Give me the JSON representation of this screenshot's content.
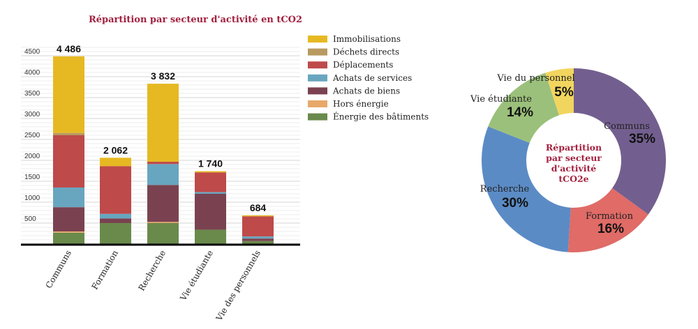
{
  "chart_data": [
    {
      "type": "bar",
      "stacked": true,
      "title": "Répartition par secteur d'activité en tCO2",
      "categories": [
        "Communs",
        "Formation",
        "Recherche",
        "Vie étudiante",
        "Vie des personnels"
      ],
      "totals": [
        "4 486",
        "2 062",
        "3 832",
        "1 740",
        "684"
      ],
      "yticks": [
        500,
        1000,
        1500,
        2000,
        2500,
        3000,
        3500,
        4000,
        4500
      ],
      "ylim": [
        0,
        4700
      ],
      "legend_position": "right",
      "series": [
        {
          "name": "Énergie des bâtiments",
          "color": "#6A8A4C",
          "values": [
            270,
            500,
            500,
            340,
            70
          ]
        },
        {
          "name": "Hors énergie",
          "color": "#E8A86A",
          "values": [
            30,
            0,
            28,
            0,
            0
          ]
        },
        {
          "name": "Achats de biens",
          "color": "#7A4250",
          "values": [
            580,
            110,
            883,
            860,
            60
          ]
        },
        {
          "name": "Achats de services",
          "color": "#68A6C0",
          "values": [
            470,
            110,
            500,
            40,
            50
          ]
        },
        {
          "name": "Déplacements",
          "color": "#BE4A4A",
          "values": [
            1250,
            1140,
            55,
            470,
            480
          ]
        },
        {
          "name": "Déchets directs",
          "color": "#B89A60",
          "values": [
            55,
            0,
            0,
            0,
            0
          ]
        },
        {
          "name": "Immobilisations",
          "color": "#E6B923",
          "values": [
            1831,
            202,
            1866,
            30,
            24
          ]
        }
      ]
    },
    {
      "type": "pie",
      "donut": true,
      "center_title": [
        "Répartition",
        "par secteur",
        "d'activité",
        "tCO2e"
      ],
      "slices": [
        {
          "label": "Communs",
          "value": 35,
          "pct": "35%",
          "color": "#735F8F"
        },
        {
          "label": "Formation",
          "value": 16,
          "pct": "16%",
          "color": "#E06B67"
        },
        {
          "label": "Recherche",
          "value": 30,
          "pct": "30%",
          "color": "#5B8BC5"
        },
        {
          "label": "Vie étudiante",
          "value": 14,
          "pct": "14%",
          "color": "#9BC07B"
        },
        {
          "label": "Vie du personnel",
          "value": 5,
          "pct": "5%",
          "color": "#F2D55E"
        }
      ]
    }
  ]
}
